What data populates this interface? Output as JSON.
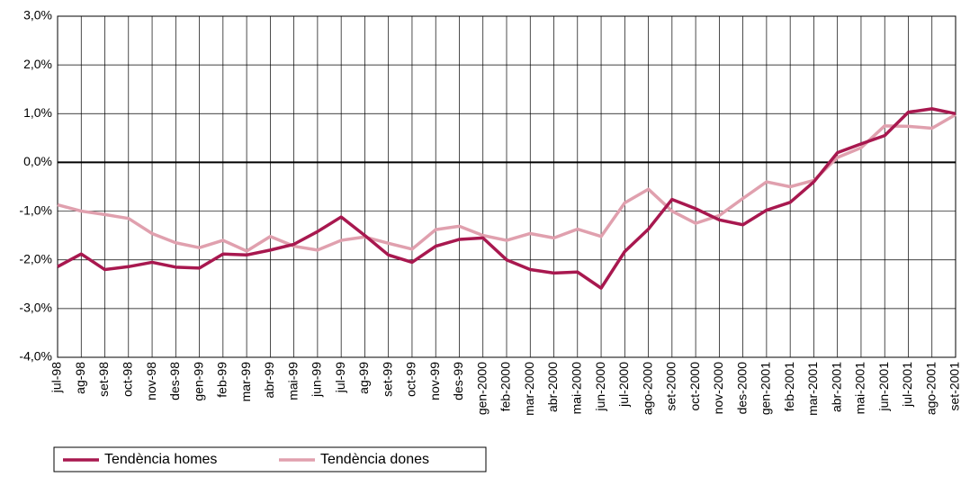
{
  "chart_data": {
    "type": "line",
    "categories": [
      "jul-98",
      "ag-98",
      "set-98",
      "oct-98",
      "nov-98",
      "des-98",
      "gen-99",
      "feb-99",
      "mar-99",
      "abr-99",
      "mai-99",
      "jun-99",
      "jul-99",
      "ag-99",
      "set-99",
      "oct-99",
      "nov-99",
      "des-99",
      "gen-2000",
      "feb-2000",
      "mar-2000",
      "abr-2000",
      "mai-2000",
      "jun-2000",
      "jul-2000",
      "ago-2000",
      "set-2000",
      "oct-2000",
      "nov-2000",
      "des-2000",
      "gen-2001",
      "feb-2001",
      "mar-2001",
      "abr-2001",
      "mai-2001",
      "jun-2001",
      "jul-2001",
      "ago-2001",
      "set-2001"
    ],
    "series": [
      {
        "name": "Tendència homes",
        "color": "#a8184f",
        "values": [
          -2.14,
          -1.88,
          -2.2,
          -2.14,
          -2.05,
          -2.15,
          -2.17,
          -1.88,
          -1.9,
          -1.8,
          -1.68,
          -1.42,
          -1.12,
          -1.5,
          -1.9,
          -2.05,
          -1.72,
          -1.58,
          -1.55,
          -2.0,
          -2.2,
          -2.27,
          -2.25,
          -2.58,
          -1.83,
          -1.37,
          -0.76,
          -0.95,
          -1.18,
          -1.28,
          -0.98,
          -0.82,
          -0.4,
          0.2,
          0.38,
          0.55,
          1.03,
          1.1,
          1.0
        ]
      },
      {
        "name": "Tendència dones",
        "color": "#e0a0ae",
        "values": [
          -0.87,
          -1.0,
          -1.07,
          -1.15,
          -1.46,
          -1.65,
          -1.75,
          -1.6,
          -1.82,
          -1.52,
          -1.72,
          -1.8,
          -1.6,
          -1.53,
          -1.66,
          -1.78,
          -1.38,
          -1.31,
          -1.5,
          -1.6,
          -1.46,
          -1.55,
          -1.37,
          -1.52,
          -0.83,
          -0.55,
          -1.0,
          -1.25,
          -1.09,
          -0.74,
          -0.4,
          -0.5,
          -0.37,
          0.1,
          0.3,
          0.75,
          0.74,
          0.7,
          0.98
        ]
      }
    ],
    "ylim": [
      -4,
      3
    ],
    "yticks": [
      {
        "value": 3,
        "label": "3,0%"
      },
      {
        "value": 2,
        "label": "2,0%"
      },
      {
        "value": 1,
        "label": "1,0%"
      },
      {
        "value": 0,
        "label": "0,0%"
      },
      {
        "value": -1,
        "label": "-1,0%"
      },
      {
        "value": -2,
        "label": "-2,0%"
      },
      {
        "value": -3,
        "label": "-3,0%"
      },
      {
        "value": -4,
        "label": "-4,0%"
      }
    ],
    "grid": true
  }
}
